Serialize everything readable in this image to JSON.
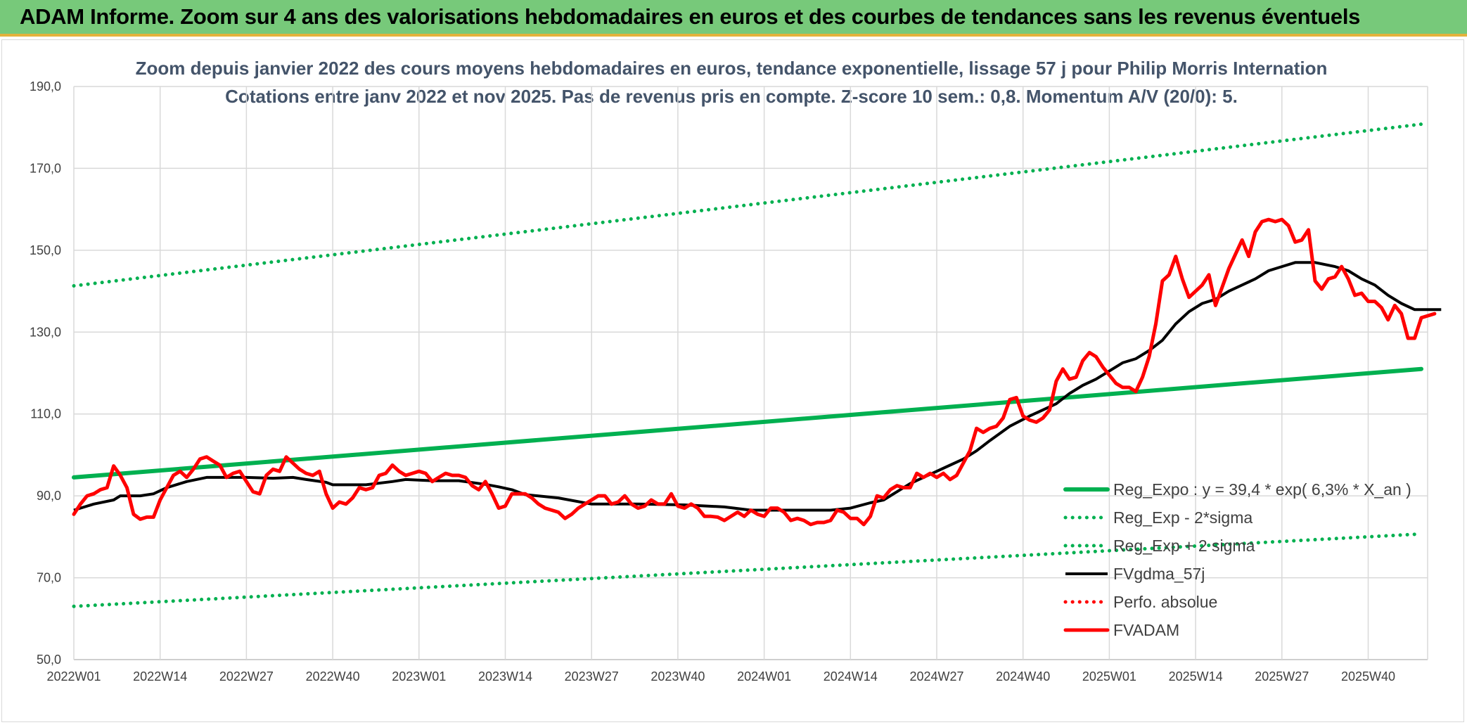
{
  "header": {
    "title": "ADAM Informe. Zoom sur 4 ans des valorisations hebdomadaires en euros et des courbes de tendances sans les revenus éventuels"
  },
  "colors": {
    "banner": "#77c97a",
    "trend": "#00b050",
    "smooth": "#000000",
    "price": "#ff0000",
    "title_text": "#44546a",
    "grid": "#d9d9d9"
  },
  "chart_data": {
    "type": "line",
    "title_lines": [
      "Zoom depuis janvier 2022 des cours moyens hebdomadaires en euros, tendance exponentielle, lissage 57 j pour Philip Morris Internation",
      "Cotations entre janv 2022 et nov 2025. Pas de revenus pris en compte. Z-score 10 sem.: 0,8. Momentum A/V (20/0): 5."
    ],
    "x_tick_labels": [
      "2022W01",
      "2022W14",
      "2022W27",
      "2022W40",
      "2023W01",
      "2023W14",
      "2023W27",
      "2023W40",
      "2024W01",
      "2024W14",
      "2024W27",
      "2024W40",
      "2025W01",
      "2025W14",
      "2025W27",
      "2025W40"
    ],
    "weeks_per_tick": 13,
    "total_weeks": 203,
    "y_tick_labels": [
      "50,0",
      "70,0",
      "90,0",
      "110,0",
      "130,0",
      "150,0",
      "170,0",
      "190,0"
    ],
    "ylim": [
      50,
      190
    ],
    "grid": true,
    "legend_position": "bottom-right",
    "series": [
      {
        "name": "Reg_Expo : y = 39,4 * exp( 6,3% *  X_an )",
        "style": "solid-thick",
        "color": "#00b050",
        "points": [
          [
            0,
            94.5
          ],
          [
            203,
            121.0
          ]
        ]
      },
      {
        "name": "Reg_Exp - 2*sigma",
        "style": "dotted",
        "color": "#00b050",
        "points": [
          [
            0,
            63.0
          ],
          [
            203,
            80.7
          ]
        ]
      },
      {
        "name": "Reg_Exp + 2 sigma",
        "style": "dotted",
        "color": "#00b050",
        "points": [
          [
            0,
            141.3
          ],
          [
            203,
            180.8
          ]
        ]
      },
      {
        "name": "FVgdma_57j",
        "style": "solid",
        "color": "#000000",
        "points": [
          [
            0,
            86.5
          ],
          [
            3,
            88.0
          ],
          [
            6,
            89.0
          ],
          [
            7,
            90.0
          ],
          [
            10,
            90.0
          ],
          [
            12,
            90.5
          ],
          [
            14,
            92.0
          ],
          [
            17,
            93.5
          ],
          [
            20,
            94.5
          ],
          [
            26,
            94.5
          ],
          [
            30,
            94.3
          ],
          [
            33,
            94.5
          ],
          [
            35,
            94.0
          ],
          [
            38,
            93.3
          ],
          [
            39,
            92.7
          ],
          [
            44,
            92.7
          ],
          [
            48,
            93.5
          ],
          [
            50,
            94.0
          ],
          [
            54,
            93.7
          ],
          [
            58,
            93.7
          ],
          [
            62,
            92.8
          ],
          [
            64,
            92.2
          ],
          [
            66,
            91.5
          ],
          [
            68,
            90.3
          ],
          [
            73,
            89.5
          ],
          [
            78,
            88.0
          ],
          [
            85,
            88.0
          ],
          [
            92,
            87.8
          ],
          [
            98,
            87.3
          ],
          [
            102,
            86.5
          ],
          [
            106,
            86.5
          ],
          [
            110,
            86.5
          ],
          [
            114,
            86.5
          ],
          [
            117,
            87.0
          ],
          [
            120,
            88.3
          ],
          [
            122,
            89.0
          ],
          [
            124,
            91.0
          ],
          [
            126,
            93.0
          ],
          [
            128,
            94.5
          ],
          [
            130,
            96.0
          ],
          [
            132,
            97.5
          ],
          [
            134,
            99.0
          ],
          [
            136,
            101.0
          ],
          [
            138,
            103.5
          ],
          [
            141,
            107.0
          ],
          [
            144,
            109.5
          ],
          [
            146,
            111.0
          ],
          [
            148,
            112.5
          ],
          [
            150,
            115.0
          ],
          [
            152,
            117.0
          ],
          [
            154,
            118.5
          ],
          [
            156,
            120.5
          ],
          [
            158,
            122.5
          ],
          [
            160,
            123.5
          ],
          [
            162,
            125.5
          ],
          [
            164,
            128.0
          ],
          [
            166,
            132.0
          ],
          [
            168,
            135.0
          ],
          [
            170,
            137.0
          ],
          [
            172,
            138.0
          ],
          [
            174,
            140.0
          ],
          [
            176,
            141.5
          ],
          [
            178,
            143.0
          ],
          [
            180,
            145.0
          ],
          [
            182,
            146.0
          ],
          [
            184,
            147.0
          ],
          [
            187,
            147.0
          ],
          [
            190,
            146.0
          ],
          [
            192,
            145.0
          ],
          [
            194,
            143.0
          ],
          [
            196,
            141.5
          ],
          [
            198,
            139.0
          ],
          [
            200,
            137.0
          ],
          [
            202,
            135.5
          ],
          [
            204,
            135.5
          ],
          [
            206,
            135.5
          ]
        ]
      },
      {
        "name": "Perfo. absolue",
        "style": "dotted",
        "color": "#ff0000",
        "points": []
      },
      {
        "name": "FVADAM",
        "style": "solid-thick",
        "color": "#ff0000",
        "points": [
          [
            0,
            85.5
          ],
          [
            1,
            88.0
          ],
          [
            2,
            90.0
          ],
          [
            3,
            90.5
          ],
          [
            4,
            91.5
          ],
          [
            5,
            92.0
          ],
          [
            6,
            97.3
          ],
          [
            7,
            95.0
          ],
          [
            8,
            92.0
          ],
          [
            9,
            85.5
          ],
          [
            10,
            84.3
          ],
          [
            11,
            84.8
          ],
          [
            12,
            84.8
          ],
          [
            13,
            89.0
          ],
          [
            14,
            92.0
          ],
          [
            15,
            95.0
          ],
          [
            16,
            96.0
          ],
          [
            17,
            94.5
          ],
          [
            18,
            96.5
          ],
          [
            19,
            99.0
          ],
          [
            20,
            99.5
          ],
          [
            21,
            98.5
          ],
          [
            22,
            97.5
          ],
          [
            23,
            94.5
          ],
          [
            24,
            95.5
          ],
          [
            25,
            96.0
          ],
          [
            26,
            93.5
          ],
          [
            27,
            91.0
          ],
          [
            28,
            90.5
          ],
          [
            29,
            95.0
          ],
          [
            30,
            96.5
          ],
          [
            31,
            96.0
          ],
          [
            32,
            99.5
          ],
          [
            33,
            98.0
          ],
          [
            34,
            96.5
          ],
          [
            35,
            95.5
          ],
          [
            36,
            95.0
          ],
          [
            37,
            96.0
          ],
          [
            38,
            90.5
          ],
          [
            39,
            87.0
          ],
          [
            40,
            88.5
          ],
          [
            41,
            88.0
          ],
          [
            42,
            89.5
          ],
          [
            43,
            92.0
          ],
          [
            44,
            91.5
          ],
          [
            45,
            92.0
          ],
          [
            46,
            95.0
          ],
          [
            47,
            95.5
          ],
          [
            48,
            97.5
          ],
          [
            49,
            96.0
          ],
          [
            50,
            95.0
          ],
          [
            51,
            95.5
          ],
          [
            52,
            96.0
          ],
          [
            53,
            95.5
          ],
          [
            54,
            93.5
          ],
          [
            55,
            94.5
          ],
          [
            56,
            95.5
          ],
          [
            57,
            95.0
          ],
          [
            58,
            95.0
          ],
          [
            59,
            94.5
          ],
          [
            60,
            92.5
          ],
          [
            61,
            91.5
          ],
          [
            62,
            93.5
          ],
          [
            63,
            90.5
          ],
          [
            64,
            87.0
          ],
          [
            65,
            87.5
          ],
          [
            66,
            90.5
          ],
          [
            67,
            90.5
          ],
          [
            68,
            90.5
          ],
          [
            69,
            89.5
          ],
          [
            70,
            88.0
          ],
          [
            71,
            87.0
          ],
          [
            72,
            86.5
          ],
          [
            73,
            86.0
          ],
          [
            74,
            84.5
          ],
          [
            75,
            85.5
          ],
          [
            76,
            87.0
          ],
          [
            77,
            88.0
          ],
          [
            78,
            89.0
          ],
          [
            79,
            90.0
          ],
          [
            80,
            90.0
          ],
          [
            81,
            88.0
          ],
          [
            82,
            88.5
          ],
          [
            83,
            90.0
          ],
          [
            84,
            88.0
          ],
          [
            85,
            87.0
          ],
          [
            86,
            87.5
          ],
          [
            87,
            89.0
          ],
          [
            88,
            88.0
          ],
          [
            89,
            88.0
          ],
          [
            90,
            90.5
          ],
          [
            91,
            87.5
          ],
          [
            92,
            87.0
          ],
          [
            93,
            88.0
          ],
          [
            94,
            87.0
          ],
          [
            95,
            85.0
          ],
          [
            96,
            85.0
          ],
          [
            97,
            84.8
          ],
          [
            98,
            84.0
          ],
          [
            99,
            85.0
          ],
          [
            100,
            86.0
          ],
          [
            101,
            85.0
          ],
          [
            102,
            86.5
          ],
          [
            103,
            85.5
          ],
          [
            104,
            85.0
          ],
          [
            105,
            87.0
          ],
          [
            106,
            87.0
          ],
          [
            107,
            86.0
          ],
          [
            108,
            84.0
          ],
          [
            109,
            84.5
          ],
          [
            110,
            84.0
          ],
          [
            111,
            83.0
          ],
          [
            112,
            83.5
          ],
          [
            113,
            83.5
          ],
          [
            114,
            84.0
          ],
          [
            115,
            86.5
          ],
          [
            116,
            86.0
          ],
          [
            117,
            84.5
          ],
          [
            118,
            84.5
          ],
          [
            119,
            83.0
          ],
          [
            120,
            85.0
          ],
          [
            121,
            90.0
          ],
          [
            122,
            89.5
          ],
          [
            123,
            91.5
          ],
          [
            124,
            92.5
          ],
          [
            125,
            92.0
          ],
          [
            126,
            92.0
          ],
          [
            127,
            95.5
          ],
          [
            128,
            94.5
          ],
          [
            129,
            95.5
          ],
          [
            130,
            94.5
          ],
          [
            131,
            95.5
          ],
          [
            132,
            94.0
          ],
          [
            133,
            95.0
          ],
          [
            134,
            98.0
          ],
          [
            135,
            101.0
          ],
          [
            136,
            106.5
          ],
          [
            137,
            105.5
          ],
          [
            138,
            106.5
          ],
          [
            139,
            107.0
          ],
          [
            140,
            109.0
          ],
          [
            141,
            113.5
          ],
          [
            142,
            114.0
          ],
          [
            143,
            109.5
          ],
          [
            144,
            108.5
          ],
          [
            145,
            108.0
          ],
          [
            146,
            109.0
          ],
          [
            147,
            111.0
          ],
          [
            148,
            118.0
          ],
          [
            149,
            121.0
          ],
          [
            150,
            118.5
          ],
          [
            151,
            119.0
          ],
          [
            152,
            123.0
          ],
          [
            153,
            125.0
          ],
          [
            154,
            124.0
          ],
          [
            155,
            121.5
          ],
          [
            156,
            119.5
          ],
          [
            157,
            117.5
          ],
          [
            158,
            116.5
          ],
          [
            159,
            116.5
          ],
          [
            160,
            115.5
          ],
          [
            161,
            119.0
          ],
          [
            162,
            124.0
          ],
          [
            163,
            132.0
          ],
          [
            164,
            142.5
          ],
          [
            165,
            144.0
          ],
          [
            166,
            148.5
          ],
          [
            167,
            143.0
          ],
          [
            168,
            138.5
          ],
          [
            169,
            140.0
          ],
          [
            170,
            141.5
          ],
          [
            171,
            144.0
          ],
          [
            172,
            136.5
          ],
          [
            173,
            141.0
          ],
          [
            174,
            145.5
          ],
          [
            175,
            149.0
          ],
          [
            176,
            152.5
          ],
          [
            177,
            148.5
          ],
          [
            178,
            154.5
          ],
          [
            179,
            157.0
          ],
          [
            180,
            157.5
          ],
          [
            181,
            157.0
          ],
          [
            182,
            157.5
          ],
          [
            183,
            156.0
          ],
          [
            184,
            152.0
          ],
          [
            185,
            152.5
          ],
          [
            186,
            155.0
          ],
          [
            187,
            142.5
          ],
          [
            188,
            140.5
          ],
          [
            189,
            143.0
          ],
          [
            190,
            143.5
          ],
          [
            191,
            146.0
          ],
          [
            192,
            143.0
          ],
          [
            193,
            139.0
          ],
          [
            194,
            139.5
          ],
          [
            195,
            137.5
          ],
          [
            196,
            137.5
          ],
          [
            197,
            136.0
          ],
          [
            198,
            133.0
          ],
          [
            199,
            136.5
          ],
          [
            200,
            134.5
          ],
          [
            201,
            128.5
          ],
          [
            202,
            128.5
          ],
          [
            203,
            133.5
          ],
          [
            204,
            134.0
          ],
          [
            205,
            134.5
          ]
        ]
      }
    ]
  }
}
